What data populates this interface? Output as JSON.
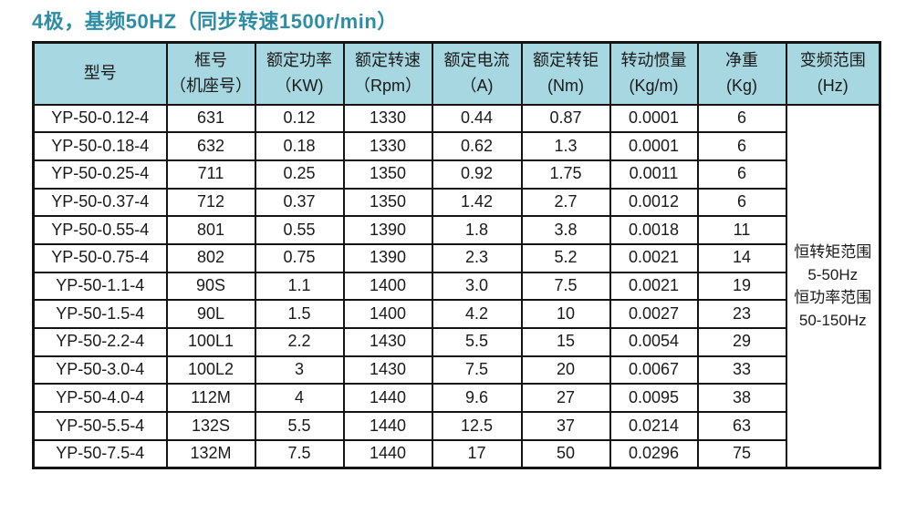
{
  "title": "4极，基频50HZ（同步转速1500r/min）",
  "colors": {
    "title_text": "#2e8da6",
    "header_bg": "#a7d7e1",
    "border": "#141414",
    "cell_text": "#1a1a1a",
    "body_bg": "#ffffff"
  },
  "table": {
    "columns": [
      {
        "id": "model",
        "label_lines": [
          "型号"
        ]
      },
      {
        "id": "frame",
        "label_lines": [
          "框号",
          "（机座号）"
        ]
      },
      {
        "id": "power",
        "label_lines": [
          "额定功率",
          "（KW)"
        ]
      },
      {
        "id": "speed",
        "label_lines": [
          "额定转速",
          "（Rpm）"
        ]
      },
      {
        "id": "current",
        "label_lines": [
          "额定电流",
          "（A)"
        ]
      },
      {
        "id": "torque",
        "label_lines": [
          "额定转钜",
          "(Nm)"
        ]
      },
      {
        "id": "inertia",
        "label_lines": [
          "转动惯量",
          "(Kg/m)"
        ]
      },
      {
        "id": "weight",
        "label_lines": [
          "净重",
          "(Kg)"
        ]
      },
      {
        "id": "freq",
        "label_lines": [
          "变频范围",
          "(Hz)"
        ]
      }
    ],
    "rows": [
      [
        "YP-50-0.12-4",
        "631",
        "0.12",
        "1330",
        "0.44",
        "0.87",
        "0.0001",
        "6"
      ],
      [
        "YP-50-0.18-4",
        "632",
        "0.18",
        "1330",
        "0.62",
        "1.3",
        "0.0001",
        "6"
      ],
      [
        "YP-50-0.25-4",
        "711",
        "0.25",
        "1350",
        "0.92",
        "1.75",
        "0.0011",
        "6"
      ],
      [
        "YP-50-0.37-4",
        "712",
        "0.37",
        "1350",
        "1.42",
        "2.7",
        "0.0012",
        "6"
      ],
      [
        "YP-50-0.55-4",
        "801",
        "0.55",
        "1390",
        "1.8",
        "3.8",
        "0.0018",
        "11"
      ],
      [
        "YP-50-0.75-4",
        "802",
        "0.75",
        "1390",
        "2.3",
        "5.2",
        "0.0021",
        "14"
      ],
      [
        "YP-50-1.1-4",
        "90S",
        "1.1",
        "1400",
        "3.0",
        "7.5",
        "0.0021",
        "19"
      ],
      [
        "YP-50-1.5-4",
        "90L",
        "1.5",
        "1400",
        "4.2",
        "10",
        "0.0027",
        "23"
      ],
      [
        "YP-50-2.2-4",
        "100L1",
        "2.2",
        "1430",
        "5.5",
        "15",
        "0.0054",
        "29"
      ],
      [
        "YP-50-3.0-4",
        "100L2",
        "3",
        "1430",
        "7.5",
        "20",
        "0.0067",
        "33"
      ],
      [
        "YP-50-4.0-4",
        "112M",
        "4",
        "1440",
        "9.6",
        "27",
        "0.0095",
        "38"
      ],
      [
        "YP-50-5.5-4",
        "132S",
        "5.5",
        "1440",
        "12.5",
        "37",
        "0.0214",
        "63"
      ],
      [
        "YP-50-7.5-4",
        "132M",
        "7.5",
        "1440",
        "17",
        "50",
        "0.0296",
        "75"
      ]
    ],
    "frequency_range_lines": [
      "恒转矩范围",
      "5-50Hz",
      "恒功率范围",
      "50-150Hz"
    ]
  }
}
